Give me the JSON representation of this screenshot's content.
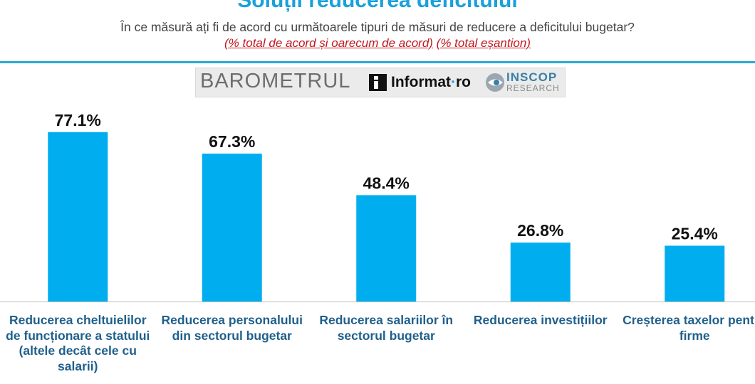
{
  "header": {
    "title": "Soluții reducerea deficitului",
    "subtitle": "În ce măsură ați fi de acord cu următoarele tipuri de măsuri de reducere a deficitului bugetar?",
    "note_part1": "(% total de acord și oarecum de acord)",
    "note_part2": "(% total eșantion)"
  },
  "logos": {
    "barometrul": "BAROMETRUL",
    "informat_main": "Informat",
    "informat_dot": "·",
    "informat_tld": "ro",
    "inscop": "INSCOP",
    "research": "RESEARCH"
  },
  "colors": {
    "bar": "#00aeef",
    "title": "#1aa0dc",
    "category_text": "#1f5f8b",
    "note": "#c0181f"
  },
  "chart_data": {
    "type": "bar",
    "categories": [
      "Reducerea cheltuielilor de funcționare a statului (altele decât cele cu salarii)",
      "Reducerea personalului din sectorul bugetar",
      "Reducerea salariilor în sectorul bugetar",
      "Reducerea investițiilor",
      "Creșterea taxelor pentru firme"
    ],
    "values": [
      77.1,
      67.3,
      48.4,
      26.8,
      25.4
    ],
    "data_labels": [
      "77.1%",
      "67.3%",
      "48.4%",
      "26.8%",
      "25.4%"
    ],
    "title": "Soluții reducerea deficitului",
    "ylim": [
      0,
      100
    ],
    "grid": false,
    "legend": "none"
  }
}
